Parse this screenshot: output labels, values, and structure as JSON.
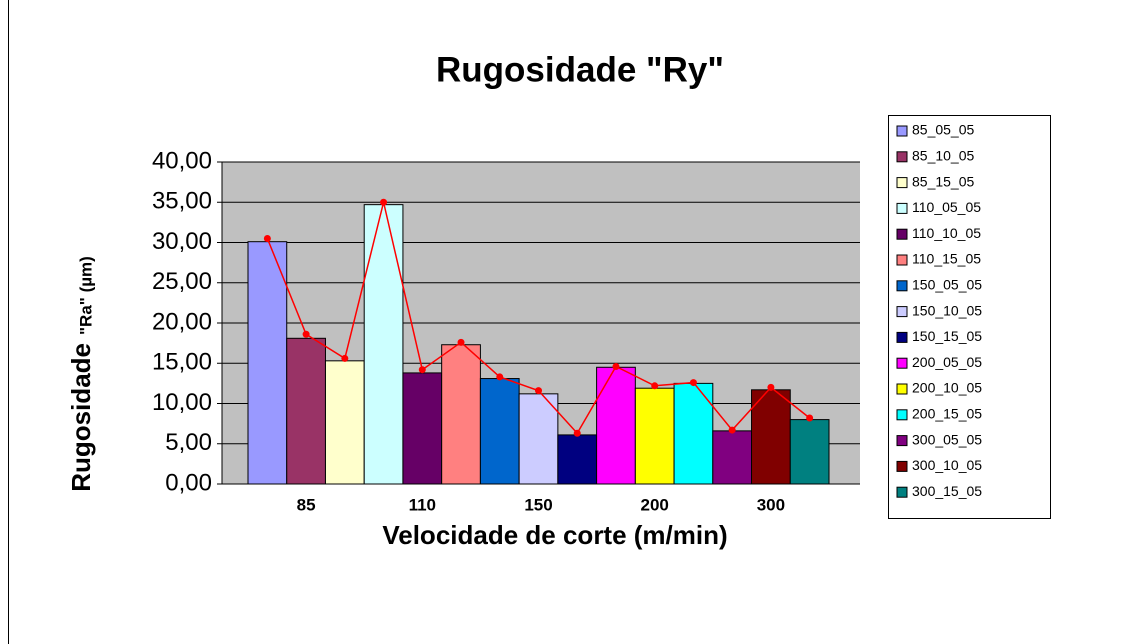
{
  "chart_data": {
    "type": "bar",
    "title": "Rugosidade \"Ry\"",
    "xlabel": "Velocidade de corte (m/min)",
    "ylabel": "Rugosidade",
    "ylabel_unit": "\"Ra\" (µm)",
    "xticklabels": [
      "85",
      "110",
      "150",
      "200",
      "300"
    ],
    "series": [
      {
        "name": "85_05_05",
        "color": "#9999ff",
        "value": 30.1
      },
      {
        "name": "85_10_05",
        "color": "#993366",
        "value": 18.1
      },
      {
        "name": "85_15_05",
        "color": "#ffffcc",
        "value": 15.3
      },
      {
        "name": "110_05_05",
        "color": "#ccffff",
        "value": 34.7
      },
      {
        "name": "110_10_05",
        "color": "#660066",
        "value": 13.8
      },
      {
        "name": "110_15_05",
        "color": "#ff8080",
        "value": 17.3
      },
      {
        "name": "150_05_05",
        "color": "#0066cc",
        "value": 13.1
      },
      {
        "name": "150_10_05",
        "color": "#ccccff",
        "value": 11.2
      },
      {
        "name": "150_15_05",
        "color": "#000080",
        "value": 6.1
      },
      {
        "name": "200_05_05",
        "color": "#ff00ff",
        "value": 14.5
      },
      {
        "name": "200_10_05",
        "color": "#ffff00",
        "value": 11.9
      },
      {
        "name": "200_15_05",
        "color": "#00ffff",
        "value": 12.5
      },
      {
        "name": "300_05_05",
        "color": "#800080",
        "value": 6.6
      },
      {
        "name": "300_10_05",
        "color": "#800000",
        "value": 11.7
      },
      {
        "name": "300_15_05",
        "color": "#008080",
        "value": 8.0
      }
    ],
    "line": {
      "color": "#ff0000",
      "values": [
        30.5,
        18.6,
        15.6,
        35.0,
        14.2,
        17.6,
        13.3,
        11.6,
        6.3,
        14.6,
        12.2,
        12.6,
        6.7,
        12.0,
        8.2
      ]
    },
    "ylim": [
      0,
      40
    ],
    "yticks": [
      {
        "value": 0,
        "label": "0,00"
      },
      {
        "value": 5,
        "label": "5,00"
      },
      {
        "value": 10,
        "label": "10,00"
      },
      {
        "value": 15,
        "label": "15,00"
      },
      {
        "value": 20,
        "label": "20,00"
      },
      {
        "value": 25,
        "label": "25,00"
      },
      {
        "value": 30,
        "label": "30,00"
      },
      {
        "value": 35,
        "label": "35,00"
      },
      {
        "value": 40,
        "label": "40,00"
      }
    ],
    "grid": true,
    "plot_background": "#c0c0c0"
  }
}
